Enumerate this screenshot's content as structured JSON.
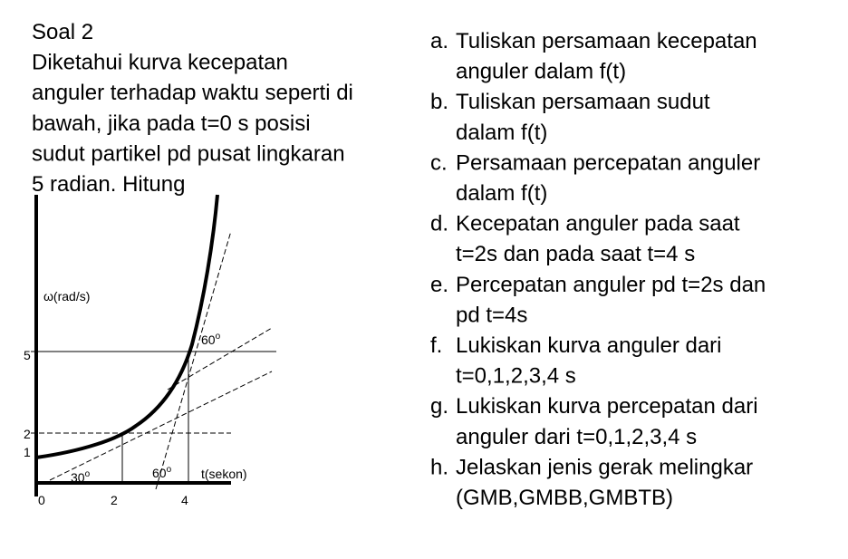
{
  "title": "Soal 2",
  "intro_lines": [
    "Diketahui kurva kecepatan",
    "anguler terhadap waktu seperti di",
    "bawah, jika pada t=0 s posisi",
    "sudut partikel pd pusat lingkaran",
    "5 radian. Hitung"
  ],
  "questions": [
    {
      "letter": "a.",
      "lines": [
        "Tuliskan persamaan kecepatan",
        "anguler dalam f(t)"
      ]
    },
    {
      "letter": "b.",
      "lines": [
        "Tuliskan persamaan sudut",
        "dalam f(t)"
      ]
    },
    {
      "letter": "c.",
      "lines": [
        "Persamaan percepatan anguler",
        "dalam f(t)"
      ]
    },
    {
      "letter": "d.",
      "lines": [
        "Kecepatan anguler pada saat",
        "t=2s dan pada saat t=4 s"
      ]
    },
    {
      "letter": "e.",
      "lines": [
        "Percepatan anguler pd t=2s dan",
        "pd t=4s"
      ]
    },
    {
      "letter": "f.",
      "lines": [
        "Lukiskan kurva anguler dari",
        "t=0,1,2,3,4 s"
      ]
    },
    {
      "letter": "g.",
      "lines": [
        "Lukiskan kurva percepatan dari",
        "anguler dari t=0,1,2,3,4 s"
      ]
    },
    {
      "letter": "h.",
      "lines": [
        "Jelaskan jenis gerak melingkar",
        "(GMB,GMBB,GMBTB)"
      ]
    }
  ],
  "graph": {
    "y_label": "ω(rad/s)",
    "x_label": "t(sekon)",
    "x_ticks": [
      "0",
      "2",
      "4"
    ],
    "y_ticks": [
      "5",
      "2",
      "1"
    ],
    "angles": [
      {
        "text": "60",
        "sup": "o"
      },
      {
        "text": "30",
        "sup": "o"
      },
      {
        "text": "60",
        "sup": "o"
      }
    ]
  }
}
